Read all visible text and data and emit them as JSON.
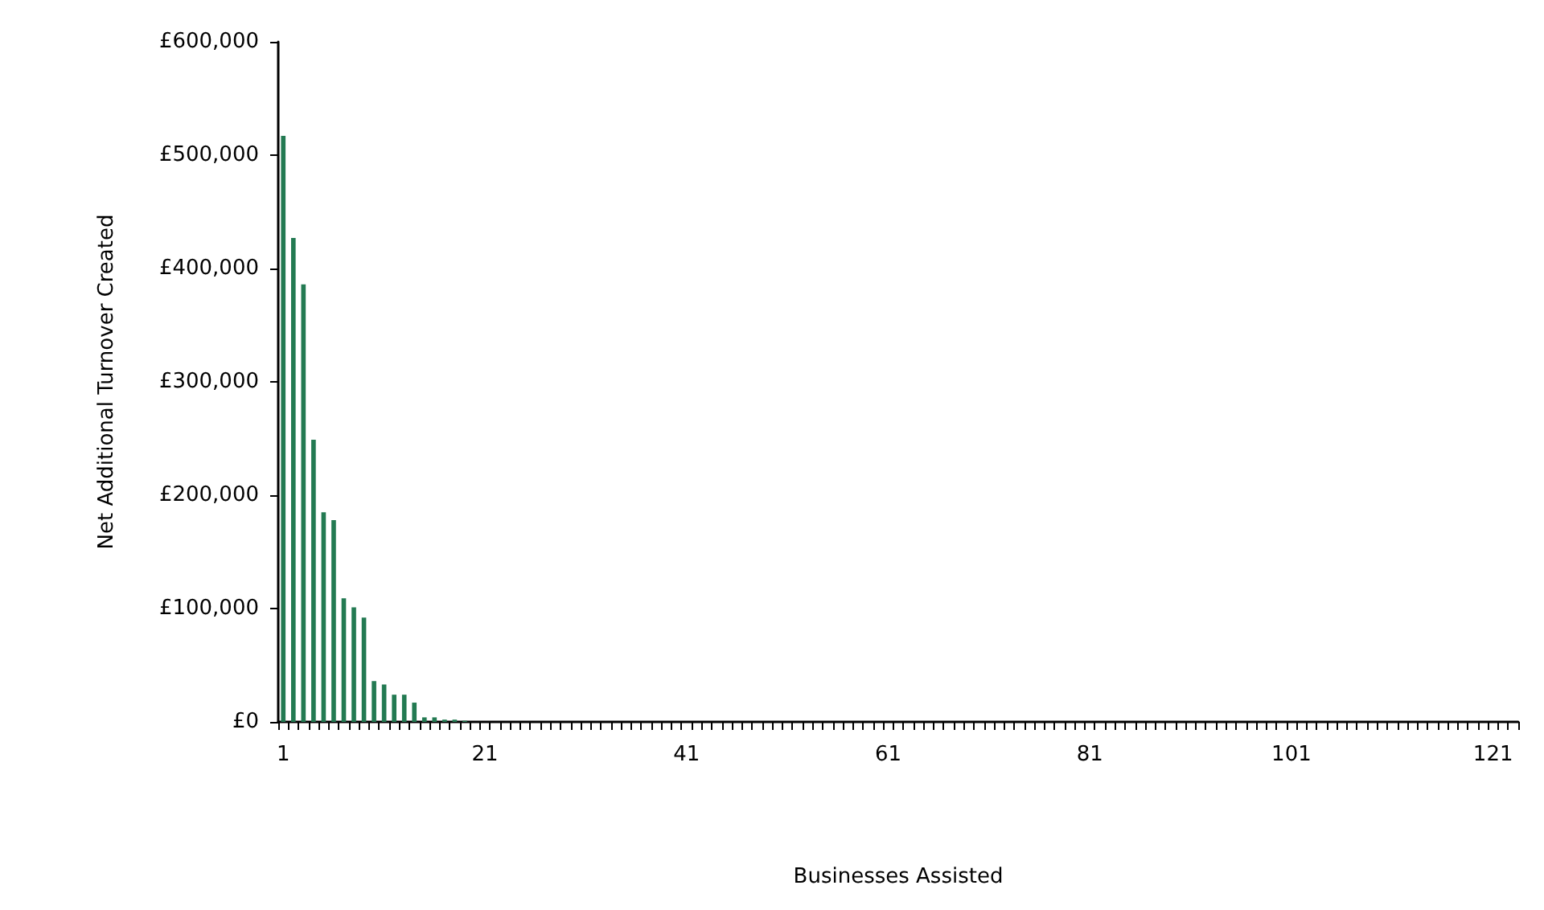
{
  "chart_data": {
    "type": "bar",
    "xlabel": "Businesses Assisted",
    "ylabel": "Net Additional Turnover Created",
    "categories": [
      "1",
      null,
      null,
      null,
      null,
      null,
      null,
      null,
      null,
      null,
      null,
      null,
      null,
      null,
      null,
      null,
      null,
      null,
      null,
      null,
      "21",
      null,
      null,
      null,
      null,
      null,
      null,
      null,
      null,
      null,
      null,
      null,
      null,
      null,
      null,
      null,
      null,
      null,
      null,
      null,
      "41",
      null,
      null,
      null,
      null,
      null,
      null,
      null,
      null,
      null,
      null,
      null,
      null,
      null,
      null,
      null,
      null,
      null,
      null,
      null,
      "61",
      null,
      null,
      null,
      null,
      null,
      null,
      null,
      null,
      null,
      null,
      null,
      null,
      null,
      null,
      null,
      null,
      null,
      null,
      null,
      "81",
      null,
      null,
      null,
      null,
      null,
      null,
      null,
      null,
      null,
      null,
      null,
      null,
      null,
      null,
      null,
      null,
      null,
      null,
      null,
      "101",
      null,
      null,
      null,
      null,
      null,
      null,
      null,
      null,
      null,
      null,
      null,
      null,
      null,
      null,
      null,
      null,
      null,
      null,
      null,
      "121",
      null,
      null
    ],
    "values": [
      517000,
      427000,
      386000,
      249000,
      185000,
      178000,
      109000,
      101000,
      92000,
      36000,
      33000,
      24000,
      24000,
      17000,
      4000,
      4000,
      2000,
      2000,
      1000,
      0,
      0,
      0,
      0,
      0,
      0,
      0,
      0,
      0,
      0,
      0,
      0,
      0,
      0,
      0,
      0,
      0,
      0,
      0,
      0,
      0,
      0,
      0,
      0,
      0,
      0,
      0,
      0,
      0,
      0,
      0,
      0,
      0,
      0,
      0,
      0,
      0,
      0,
      0,
      0,
      0,
      0,
      0,
      0,
      0,
      0,
      0,
      0,
      0,
      0,
      0,
      0,
      0,
      0,
      0,
      0,
      0,
      0,
      0,
      0,
      0,
      0,
      0,
      0,
      0,
      0,
      0,
      0,
      0,
      0,
      0,
      0,
      0,
      0,
      0,
      0,
      0,
      0,
      0,
      0,
      0,
      0,
      0,
      0,
      0,
      0,
      0,
      0,
      0,
      0,
      0,
      0,
      0,
      0,
      0,
      0,
      0,
      0,
      0,
      0,
      0,
      0,
      0,
      0
    ],
    "color": "#237a52",
    "ylim": [
      0,
      600000
    ],
    "yticks": [
      {
        "value": 0,
        "label": "£0"
      },
      {
        "value": 100000,
        "label": "£100,000"
      },
      {
        "value": 200000,
        "label": "£200,000"
      },
      {
        "value": 300000,
        "label": "£300,000"
      },
      {
        "value": 400000,
        "label": "£400,000"
      },
      {
        "value": 500000,
        "label": "£500,000"
      },
      {
        "value": 600000,
        "label": "£600,000"
      }
    ],
    "grid": false
  }
}
